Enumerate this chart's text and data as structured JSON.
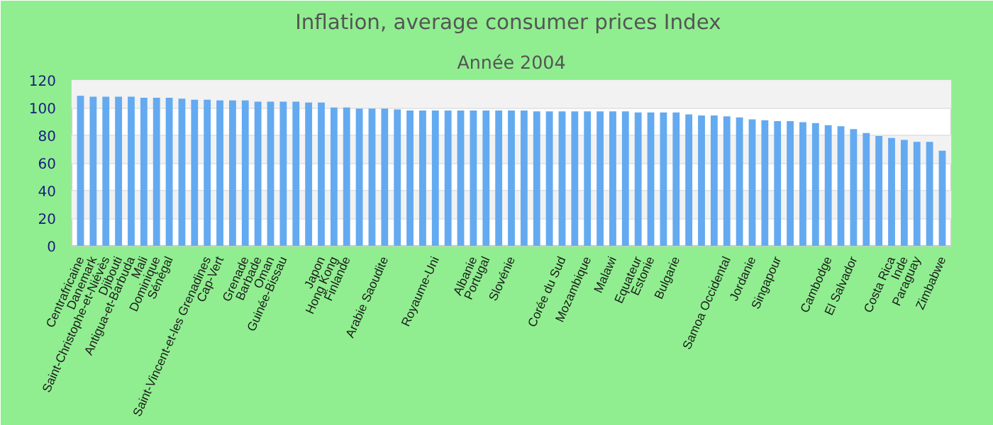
{
  "chart_data": {
    "type": "bar",
    "title": "Inflation, average consumer prices  Index",
    "subtitle": "Année 2004",
    "categories": [
      "Centrafricaine",
      "Danemark",
      "Saint-Christophe-et-Niévès",
      "Djibouti",
      "Antigua-et-Barbuda",
      "Mali",
      "Dominique",
      "Sénégal",
      null,
      null,
      "Saint-Vincent-et-les Grenadines",
      "Cap-Vert",
      null,
      "Grenade",
      "Barbade",
      "Oman",
      "Guinée-Bissau",
      null,
      null,
      "Japon",
      "Hong Kong",
      "Finlande",
      null,
      null,
      "Arabie Saoudite",
      null,
      null,
      null,
      "Royaume-Uni",
      null,
      null,
      "Albanie",
      "Portugal",
      null,
      "Slovénie",
      null,
      null,
      null,
      "Corée du Sud",
      null,
      "Mozambique",
      null,
      "Malawi",
      null,
      "Equateur",
      "Estonie",
      null,
      "Bulgarie",
      null,
      null,
      null,
      "Samoa Occidental",
      null,
      "Jordanie",
      null,
      "Singapour",
      null,
      null,
      null,
      "Cambodge",
      null,
      "El Salvador",
      null,
      null,
      "Costa Rica",
      "Inde",
      "Paraguay",
      null,
      "Zimbabwe"
    ],
    "values": [
      108.6,
      107.9,
      107.9,
      107.9,
      107.9,
      107.2,
      107.2,
      107.2,
      106.5,
      105.8,
      105.8,
      105.2,
      105.2,
      105.2,
      104.4,
      104.4,
      104.4,
      104.4,
      103.7,
      103.7,
      100.1,
      100.1,
      99.4,
      99.4,
      99.4,
      98.7,
      98,
      98,
      98,
      98,
      98,
      98,
      98,
      98,
      98,
      98,
      97.3,
      97.3,
      97.3,
      97.3,
      97.3,
      97.3,
      97.3,
      97.3,
      96.6,
      96.6,
      96.6,
      96.6,
      95.1,
      94.4,
      94.4,
      93.7,
      93,
      91.6,
      90.9,
      90.2,
      90.2,
      89.5,
      88.8,
      87.3,
      86.6,
      84.5,
      81.7,
      79.5,
      78.1,
      76.7,
      75.3,
      75.3,
      68.9
    ],
    "color": "#64aaf0",
    "ylim": [
      0,
      120
    ],
    "yticks": [
      0,
      20,
      40,
      60,
      80,
      100,
      120
    ],
    "grid": "y"
  }
}
